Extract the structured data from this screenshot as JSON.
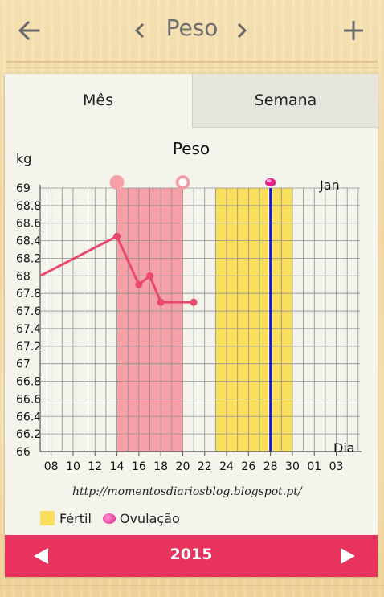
{
  "header": {
    "title": "Peso",
    "back_icon": "arrow-left-icon",
    "add_icon": "plus-icon"
  },
  "tabs": [
    {
      "label": "Mês",
      "selected": true
    },
    {
      "label": "Semana",
      "selected": false
    }
  ],
  "chart_data": {
    "type": "line",
    "title": "Peso",
    "ylabel": "kg",
    "xlabel": "Dia",
    "month_label": "Jan",
    "ylim": [
      66,
      69
    ],
    "y_ticks": [
      "69",
      "68.8",
      "68.6",
      "68.4",
      "68.2",
      "68",
      "67.8",
      "67.6",
      "67.4",
      "67.2",
      "67",
      "66.8",
      "66.6",
      "66.4",
      "66.2",
      "66"
    ],
    "x_ticks": [
      "08",
      "10",
      "12",
      "14",
      "16",
      "18",
      "20",
      "22",
      "24",
      "26",
      "28",
      "30",
      "01",
      "03"
    ],
    "series": [
      {
        "x": [
          7,
          14,
          16,
          17,
          18,
          21
        ],
        "y": [
          68.0,
          68.45,
          67.9,
          68.0,
          67.7,
          67.7
        ]
      }
    ],
    "period_band": {
      "start": 14,
      "end": 20,
      "color": "#f7a0a7"
    },
    "fertile_band": {
      "start": 23,
      "end": 30,
      "color": "#f9df5c"
    },
    "ovulation_day": 28,
    "ovulation_line_color": "#1a1acc",
    "markers": [
      {
        "day": 14,
        "style": "filled-circle"
      },
      {
        "day": 20,
        "style": "ring"
      },
      {
        "day": 28,
        "style": "ovulation-dot"
      }
    ],
    "line_color": "#e8496c"
  },
  "url": "http://momentosdiariosblog.blogspot.pt/",
  "legend": {
    "fertile_label": "Fértil",
    "ovulation_label": "Ovulação"
  },
  "footer": {
    "year": "2015"
  }
}
